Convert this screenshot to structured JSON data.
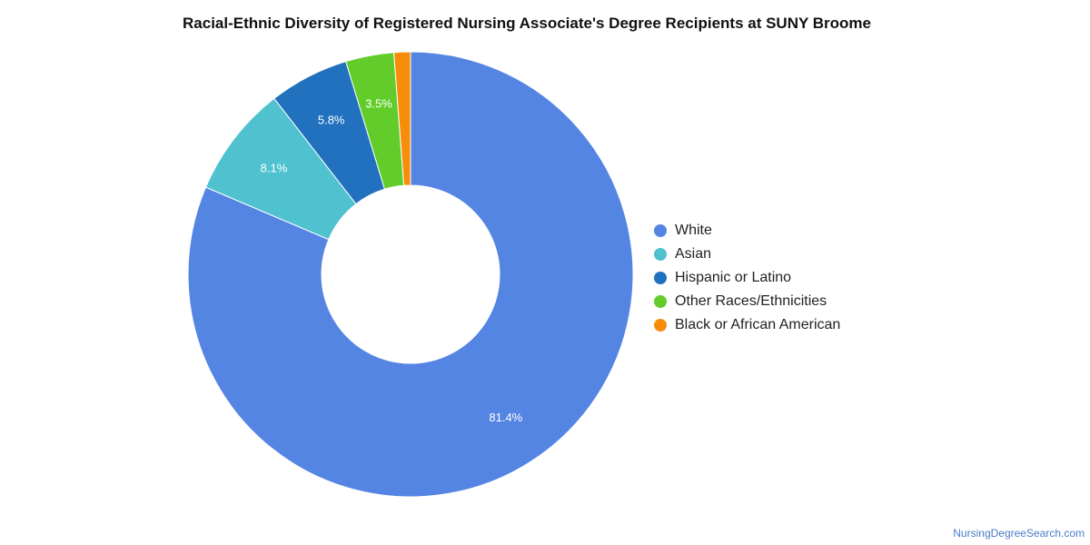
{
  "chart_data": {
    "type": "pie",
    "title": "Racial-Ethnic Diversity of Registered Nursing Associate's Degree Recipients at SUNY Broome",
    "donut": true,
    "legend_position": "right",
    "categories": [
      "White",
      "Asian",
      "Hispanic or Latino",
      "Other Races/Ethnicities",
      "Black or African American"
    ],
    "values": [
      81.4,
      8.1,
      5.8,
      3.5,
      1.2
    ],
    "value_labels": [
      "81.4%",
      "8.1%",
      "5.8%",
      "3.5%",
      ""
    ],
    "colors": [
      "#5585e3",
      "#4fc1cf",
      "#2271be",
      "#62cc2a",
      "#f78d0b"
    ]
  },
  "credit": "NursingDegreeSearch.com"
}
